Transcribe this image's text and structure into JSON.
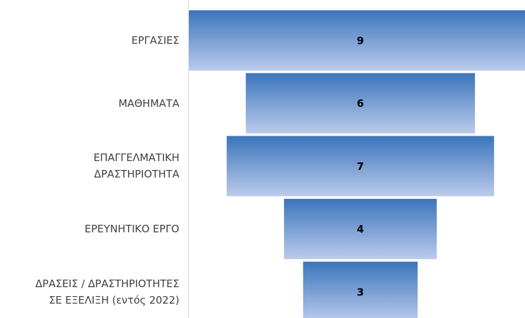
{
  "chart_data": {
    "type": "funnel",
    "categories": [
      "ΕΡΓΑΣΙΕΣ",
      "ΜΑΘΗΜΑΤΑ",
      "ΕΠΑΓΓΕΛΜΑΤΙΚΗ\nΔΡΑΣΤΗΡΙΟΤΗΤΑ",
      "ΕΡΕΥΝΗΤΙΚΟ ΕΡΓΟ",
      "ΔΡΑΣΕΙΣ / ΔΡΑΣΤΗΡΙΟΤΗΤΕΣ\nΣΕ ΕΞΕΛΙΞΗ (εντός 2022)"
    ],
    "values": [
      9,
      6,
      7,
      4,
      3
    ],
    "colors": [
      "#3b75bc",
      "#bccbeb"
    ]
  }
}
